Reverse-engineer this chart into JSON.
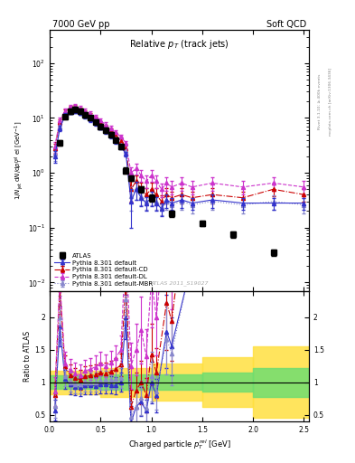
{
  "title_left": "7000 GeV pp",
  "title_right": "Soft QCD",
  "plot_title": "Relative $p_{T}$ (track jets)",
  "xlabel": "Charged particle $p_{T}^{rel}$ [GeV]",
  "ylabel_main": "1/N$_{jet}$ dN/dp$^{rel}_{T}$ el [GeV$^{-1}$]",
  "ylabel_ratio": "Ratio to ATLAS",
  "right_label_top": "Rivet 3.1.10; ≥ 400k events",
  "right_label_bot": "mcplots.cern.ch [arXiv:1306.3436]",
  "watermark": "ATLAS 2011_S19027",
  "ylim_main": [
    0.007,
    400
  ],
  "ylim_ratio": [
    0.4,
    2.4
  ],
  "xlim": [
    0.0,
    2.55
  ],
  "background_color": "#ffffff",
  "color_atlas": "#000000",
  "color_default": "#3333cc",
  "color_CD": "#cc0000",
  "color_DL": "#cc33cc",
  "color_MBR": "#8888cc",
  "legend_entries": [
    "ATLAS",
    "Pythia 8.301 default",
    "Pythia 8.301 default-CD",
    "Pythia 8.301 default-DL",
    "Pythia 8.301 default-MBR"
  ],
  "atlas_x": [
    0.1,
    0.15,
    0.2,
    0.25,
    0.3,
    0.35,
    0.4,
    0.45,
    0.5,
    0.55,
    0.6,
    0.65,
    0.7,
    0.75,
    0.8,
    0.9,
    1.0,
    1.2,
    1.5,
    1.8,
    2.2
  ],
  "atlas_y": [
    3.5,
    10.5,
    13.5,
    14.5,
    13.5,
    11.5,
    10.0,
    8.5,
    7.0,
    6.0,
    5.0,
    4.0,
    3.0,
    1.1,
    0.8,
    0.5,
    0.35,
    0.18,
    0.12,
    0.075,
    0.035
  ],
  "atlas_yerr": [
    0.4,
    1.0,
    1.5,
    1.5,
    1.4,
    1.2,
    1.0,
    0.85,
    0.7,
    0.6,
    0.5,
    0.4,
    0.3,
    0.15,
    0.1,
    0.07,
    0.05,
    0.025,
    0.015,
    0.01,
    0.005
  ],
  "def_x": [
    0.05,
    0.1,
    0.15,
    0.2,
    0.25,
    0.3,
    0.35,
    0.4,
    0.45,
    0.5,
    0.55,
    0.6,
    0.65,
    0.7,
    0.75,
    0.8,
    0.85,
    0.9,
    0.95,
    1.0,
    1.05,
    1.1,
    1.15,
    1.2,
    1.3,
    1.4,
    1.6,
    1.9,
    2.2,
    2.5
  ],
  "def_y": [
    2.0,
    6.5,
    11.0,
    13.0,
    13.5,
    12.5,
    11.0,
    9.5,
    8.0,
    6.8,
    5.8,
    4.8,
    3.8,
    3.0,
    2.2,
    0.3,
    0.5,
    0.35,
    0.28,
    0.35,
    0.28,
    0.22,
    0.32,
    0.28,
    0.32,
    0.28,
    0.32,
    0.28,
    0.28,
    0.28
  ],
  "def_yerr": [
    0.5,
    0.8,
    1.1,
    1.3,
    1.4,
    1.25,
    1.1,
    0.95,
    0.8,
    0.68,
    0.58,
    0.48,
    0.38,
    0.3,
    0.22,
    0.2,
    0.18,
    0.1,
    0.08,
    0.1,
    0.08,
    0.06,
    0.09,
    0.07,
    0.09,
    0.07,
    0.09,
    0.07,
    0.07,
    0.07
  ],
  "CD_x": [
    0.05,
    0.1,
    0.15,
    0.2,
    0.25,
    0.3,
    0.35,
    0.4,
    0.45,
    0.5,
    0.55,
    0.6,
    0.65,
    0.7,
    0.75,
    0.8,
    0.85,
    0.9,
    0.95,
    1.0,
    1.05,
    1.1,
    1.15,
    1.2,
    1.3,
    1.4,
    1.6,
    1.9,
    2.2,
    2.5
  ],
  "CD_y": [
    2.8,
    8.5,
    13.0,
    15.0,
    15.5,
    14.0,
    12.5,
    11.0,
    9.5,
    8.0,
    6.8,
    5.8,
    4.8,
    3.8,
    2.8,
    0.5,
    0.7,
    0.5,
    0.4,
    0.5,
    0.4,
    0.3,
    0.4,
    0.35,
    0.4,
    0.35,
    0.4,
    0.35,
    0.5,
    0.4
  ],
  "CD_yerr": [
    0.6,
    0.9,
    1.3,
    1.5,
    1.55,
    1.4,
    1.25,
    1.1,
    0.95,
    0.8,
    0.68,
    0.58,
    0.48,
    0.38,
    0.28,
    0.2,
    0.2,
    0.15,
    0.12,
    0.15,
    0.12,
    0.09,
    0.12,
    0.1,
    0.12,
    0.1,
    0.12,
    0.1,
    0.12,
    0.1
  ],
  "DL_x": [
    0.05,
    0.1,
    0.15,
    0.2,
    0.25,
    0.3,
    0.35,
    0.4,
    0.45,
    0.5,
    0.55,
    0.6,
    0.65,
    0.7,
    0.75,
    0.8,
    0.85,
    0.9,
    0.95,
    1.0,
    1.05,
    1.1,
    1.15,
    1.2,
    1.3,
    1.4,
    1.6,
    1.9,
    2.2,
    2.5
  ],
  "DL_y": [
    3.0,
    9.0,
    13.5,
    16.0,
    16.5,
    15.0,
    13.5,
    12.0,
    10.5,
    9.0,
    7.5,
    6.5,
    5.5,
    4.5,
    3.5,
    1.0,
    1.2,
    0.9,
    0.7,
    0.9,
    0.7,
    0.5,
    0.65,
    0.55,
    0.65,
    0.55,
    0.65,
    0.55,
    0.65,
    0.55
  ],
  "DL_yerr": [
    0.7,
    1.0,
    1.4,
    1.6,
    1.65,
    1.5,
    1.35,
    1.2,
    1.05,
    0.9,
    0.75,
    0.65,
    0.55,
    0.45,
    0.35,
    0.25,
    0.28,
    0.22,
    0.18,
    0.22,
    0.18,
    0.14,
    0.18,
    0.15,
    0.18,
    0.15,
    0.18,
    0.15,
    0.18,
    0.15
  ],
  "MBR_x": [
    0.05,
    0.1,
    0.15,
    0.2,
    0.25,
    0.3,
    0.35,
    0.4,
    0.45,
    0.5,
    0.55,
    0.6,
    0.65,
    0.7,
    0.75,
    0.8,
    0.85,
    0.9,
    0.95,
    1.0,
    1.05,
    1.1,
    1.15,
    1.2,
    1.3,
    1.4,
    1.6,
    1.9,
    2.2,
    2.5
  ],
  "MBR_y": [
    2.2,
    7.0,
    11.5,
    13.5,
    14.0,
    13.0,
    11.5,
    10.0,
    8.5,
    7.2,
    6.2,
    5.2,
    4.2,
    3.2,
    2.5,
    0.38,
    0.5,
    0.38,
    0.3,
    0.38,
    0.3,
    0.24,
    0.3,
    0.26,
    0.3,
    0.26,
    0.3,
    0.26,
    0.3,
    0.26
  ],
  "MBR_yerr": [
    0.55,
    0.85,
    1.15,
    1.35,
    1.4,
    1.3,
    1.15,
    1.0,
    0.85,
    0.72,
    0.62,
    0.52,
    0.42,
    0.32,
    0.25,
    0.18,
    0.18,
    0.12,
    0.09,
    0.12,
    0.09,
    0.07,
    0.09,
    0.08,
    0.09,
    0.08,
    0.09,
    0.08,
    0.09,
    0.08
  ],
  "band_edges": [
    0.0,
    0.5,
    1.0,
    1.5,
    2.0,
    2.55
  ],
  "yellow_lo": [
    0.82,
    0.78,
    0.72,
    0.62,
    0.45
  ],
  "yellow_hi": [
    1.18,
    1.22,
    1.28,
    1.38,
    1.55
  ],
  "green_lo": [
    0.9,
    0.88,
    0.88,
    0.85,
    0.78
  ],
  "green_hi": [
    1.1,
    1.12,
    1.12,
    1.15,
    1.22
  ]
}
